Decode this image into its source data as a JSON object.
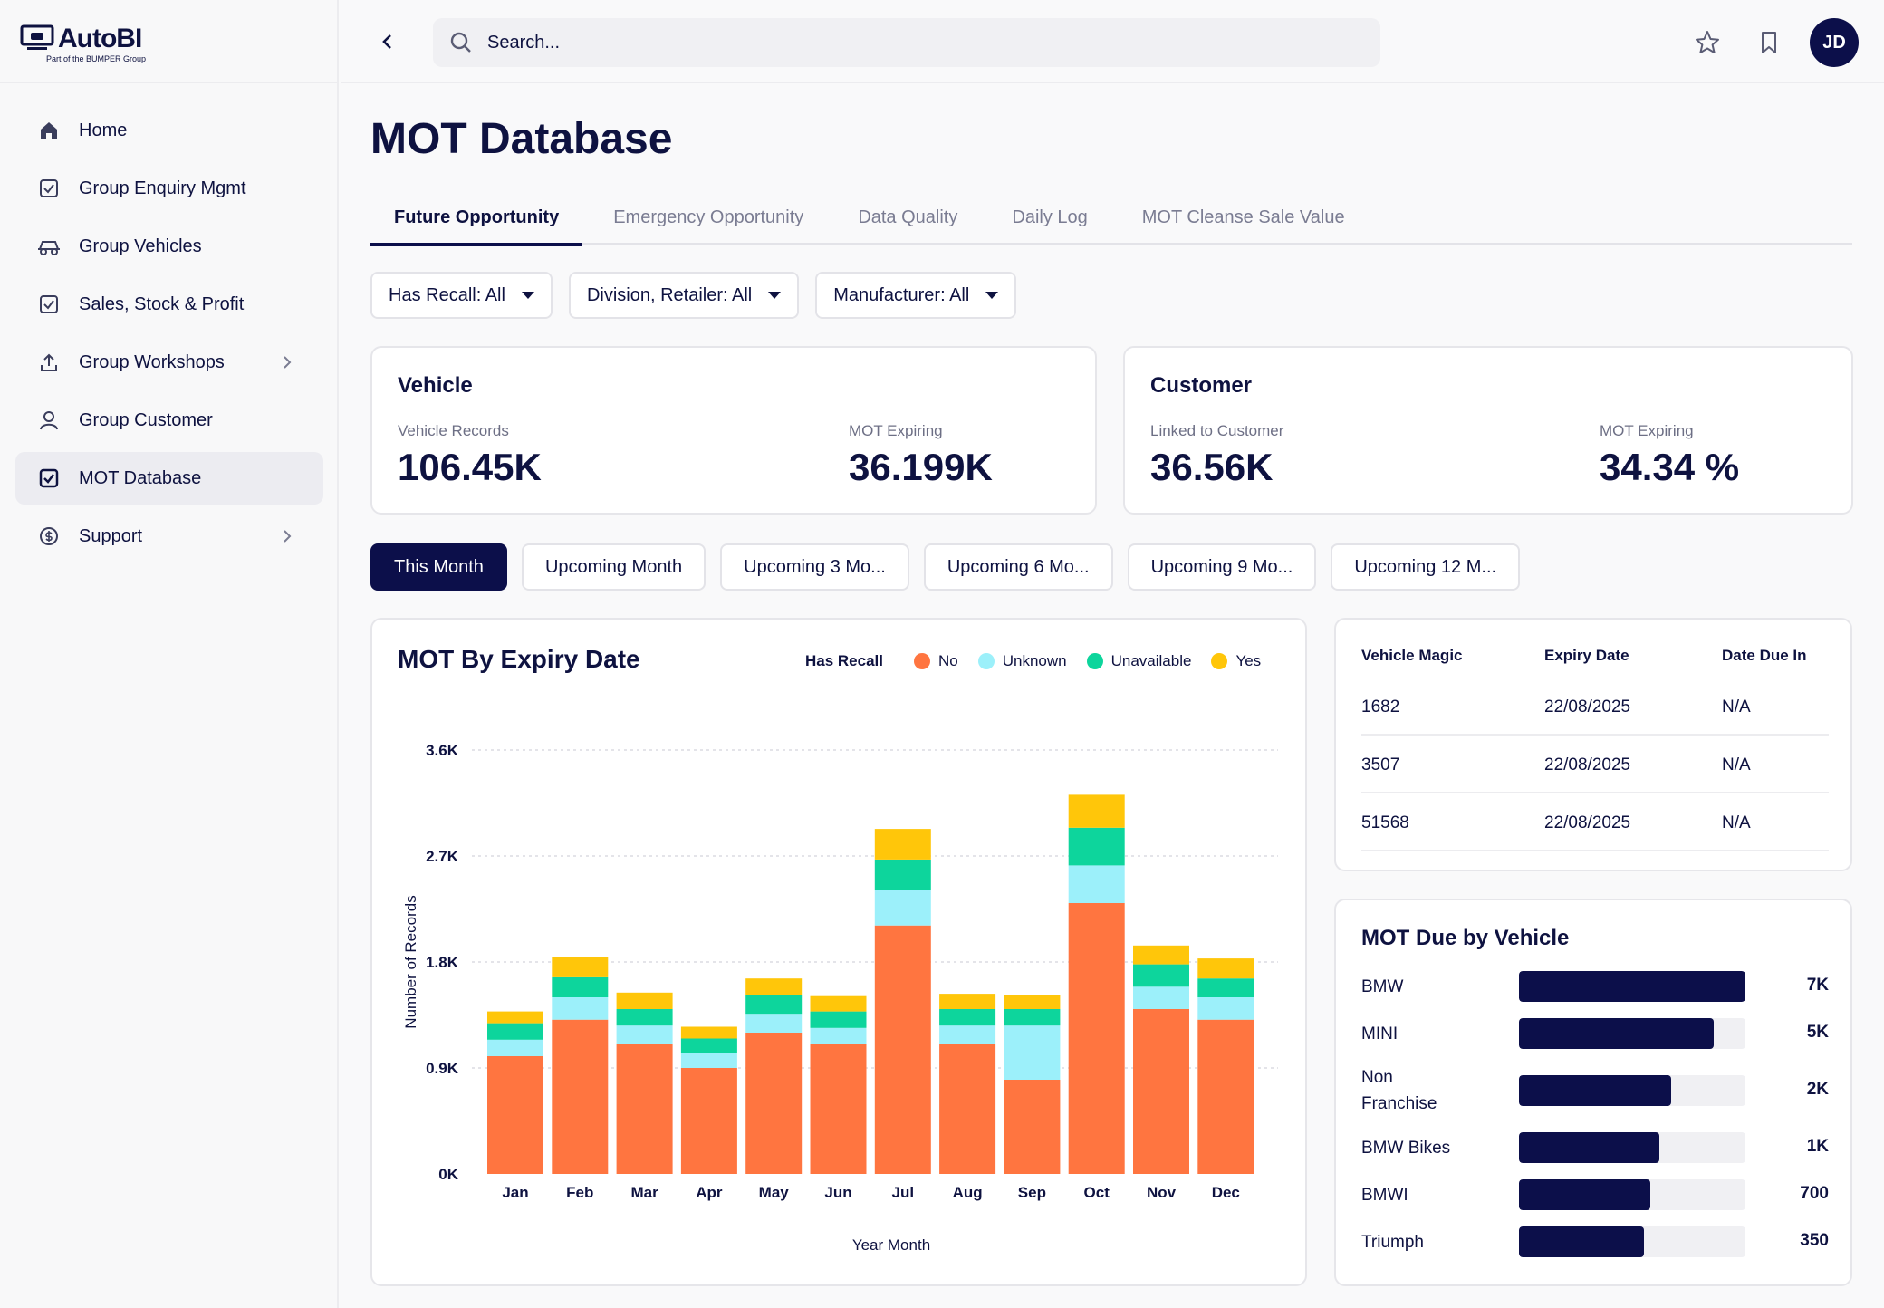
{
  "brand": {
    "name": "AutoBI",
    "sub": "Part of the BUMPER Group"
  },
  "nav": [
    {
      "label": "Home",
      "icon": "home-icon"
    },
    {
      "label": "Group Enquiry Mgmt",
      "icon": "check-square-icon"
    },
    {
      "label": "Group Vehicles",
      "icon": "car-icon"
    },
    {
      "label": "Sales, Stock & Profit",
      "icon": "check-square-icon"
    },
    {
      "label": "Group Workshops",
      "icon": "upload-icon",
      "chevron": true
    },
    {
      "label": "Group Customer",
      "icon": "user-icon"
    },
    {
      "label": "MOT Database",
      "icon": "check-square-icon",
      "active": true
    },
    {
      "label": "Support",
      "icon": "support-icon",
      "chevron": true
    }
  ],
  "topbar": {
    "search_placeholder": "Search...",
    "avatar": "JD"
  },
  "page": {
    "title": "MOT Database"
  },
  "tabs": [
    "Future Opportunity",
    "Emergency Opportunity",
    "Data Quality",
    "Daily Log",
    "MOT Cleanse Sale Value"
  ],
  "filters": [
    "Has Recall: All",
    "Division, Retailer: All",
    "Manufacturer: All"
  ],
  "vehicle_card": {
    "title": "Vehicle",
    "label1": "Vehicle Records",
    "value1": "106.45K",
    "label2": "MOT Expiring",
    "value2": "36.199K"
  },
  "customer_card": {
    "title": "Customer",
    "label1": "Linked to Customer",
    "value1": "36.56K",
    "label2": "MOT Expiring",
    "value2": "34.34 %"
  },
  "periods": [
    "This Month",
    "Upcoming Month",
    "Upcoming 3 Mo...",
    "Upcoming 6 Mo...",
    "Upcoming 9 Mo...",
    "Upcoming 12 M..."
  ],
  "colors": {
    "no": "#ff7540",
    "unknown": "#9cf0fa",
    "unavailable": "#0dd59c",
    "yes": "#ffc60a",
    "navy": "#0c0f4a"
  },
  "legend": {
    "title": "Has Recall",
    "items": [
      "No",
      "Unknown",
      "Unavailable",
      "Yes"
    ]
  },
  "chart_data": {
    "type": "bar",
    "stacked": true,
    "title": "MOT By Expiry Date",
    "xlabel": "Year Month",
    "ylabel": "Number of Records",
    "ylim": [
      0,
      3600
    ],
    "yticks": [
      "0K",
      "0.9K",
      "1.8K",
      "2.7K",
      "3.6K"
    ],
    "grid": true,
    "legend_position": "top-right",
    "categories": [
      "Jan",
      "Feb",
      "Mar",
      "Apr",
      "May",
      "Jun",
      "Jul",
      "Aug",
      "Sep",
      "Oct",
      "Nov",
      "Dec"
    ],
    "series": [
      {
        "name": "No",
        "values": [
          1000,
          1310,
          1100,
          900,
          1200,
          1100,
          2110,
          1100,
          800,
          2300,
          1400,
          1310
        ]
      },
      {
        "name": "Unknown",
        "values": [
          140,
          190,
          160,
          130,
          160,
          140,
          300,
          160,
          460,
          320,
          190,
          190
        ]
      },
      {
        "name": "Unavailable",
        "values": [
          140,
          170,
          140,
          120,
          160,
          140,
          260,
          140,
          140,
          320,
          190,
          160
        ]
      },
      {
        "name": "Yes",
        "values": [
          100,
          170,
          140,
          100,
          140,
          130,
          260,
          130,
          120,
          280,
          160,
          170
        ]
      }
    ]
  },
  "table": {
    "headers": [
      "Vehicle Magic",
      "Expiry Date",
      "Date Due In"
    ],
    "rows": [
      [
        "1682",
        "22/08/2025",
        "N/A"
      ],
      [
        "3507",
        "22/08/2025",
        "N/A"
      ],
      [
        "51568",
        "22/08/2025",
        "N/A"
      ]
    ]
  },
  "due": {
    "title": "MOT Due by Vehicle",
    "items": [
      {
        "label": "BMW",
        "value": "7K",
        "fraction": 1.0
      },
      {
        "label": "MINI",
        "value": "5K",
        "fraction": 0.86
      },
      {
        "label": "Non Franchise",
        "value": "2K",
        "fraction": 0.67
      },
      {
        "label": "BMW Bikes",
        "value": "1K",
        "fraction": 0.62
      },
      {
        "label": "BMWI",
        "value": "700",
        "fraction": 0.58
      },
      {
        "label": "Triumph",
        "value": "350",
        "fraction": 0.55
      }
    ]
  }
}
